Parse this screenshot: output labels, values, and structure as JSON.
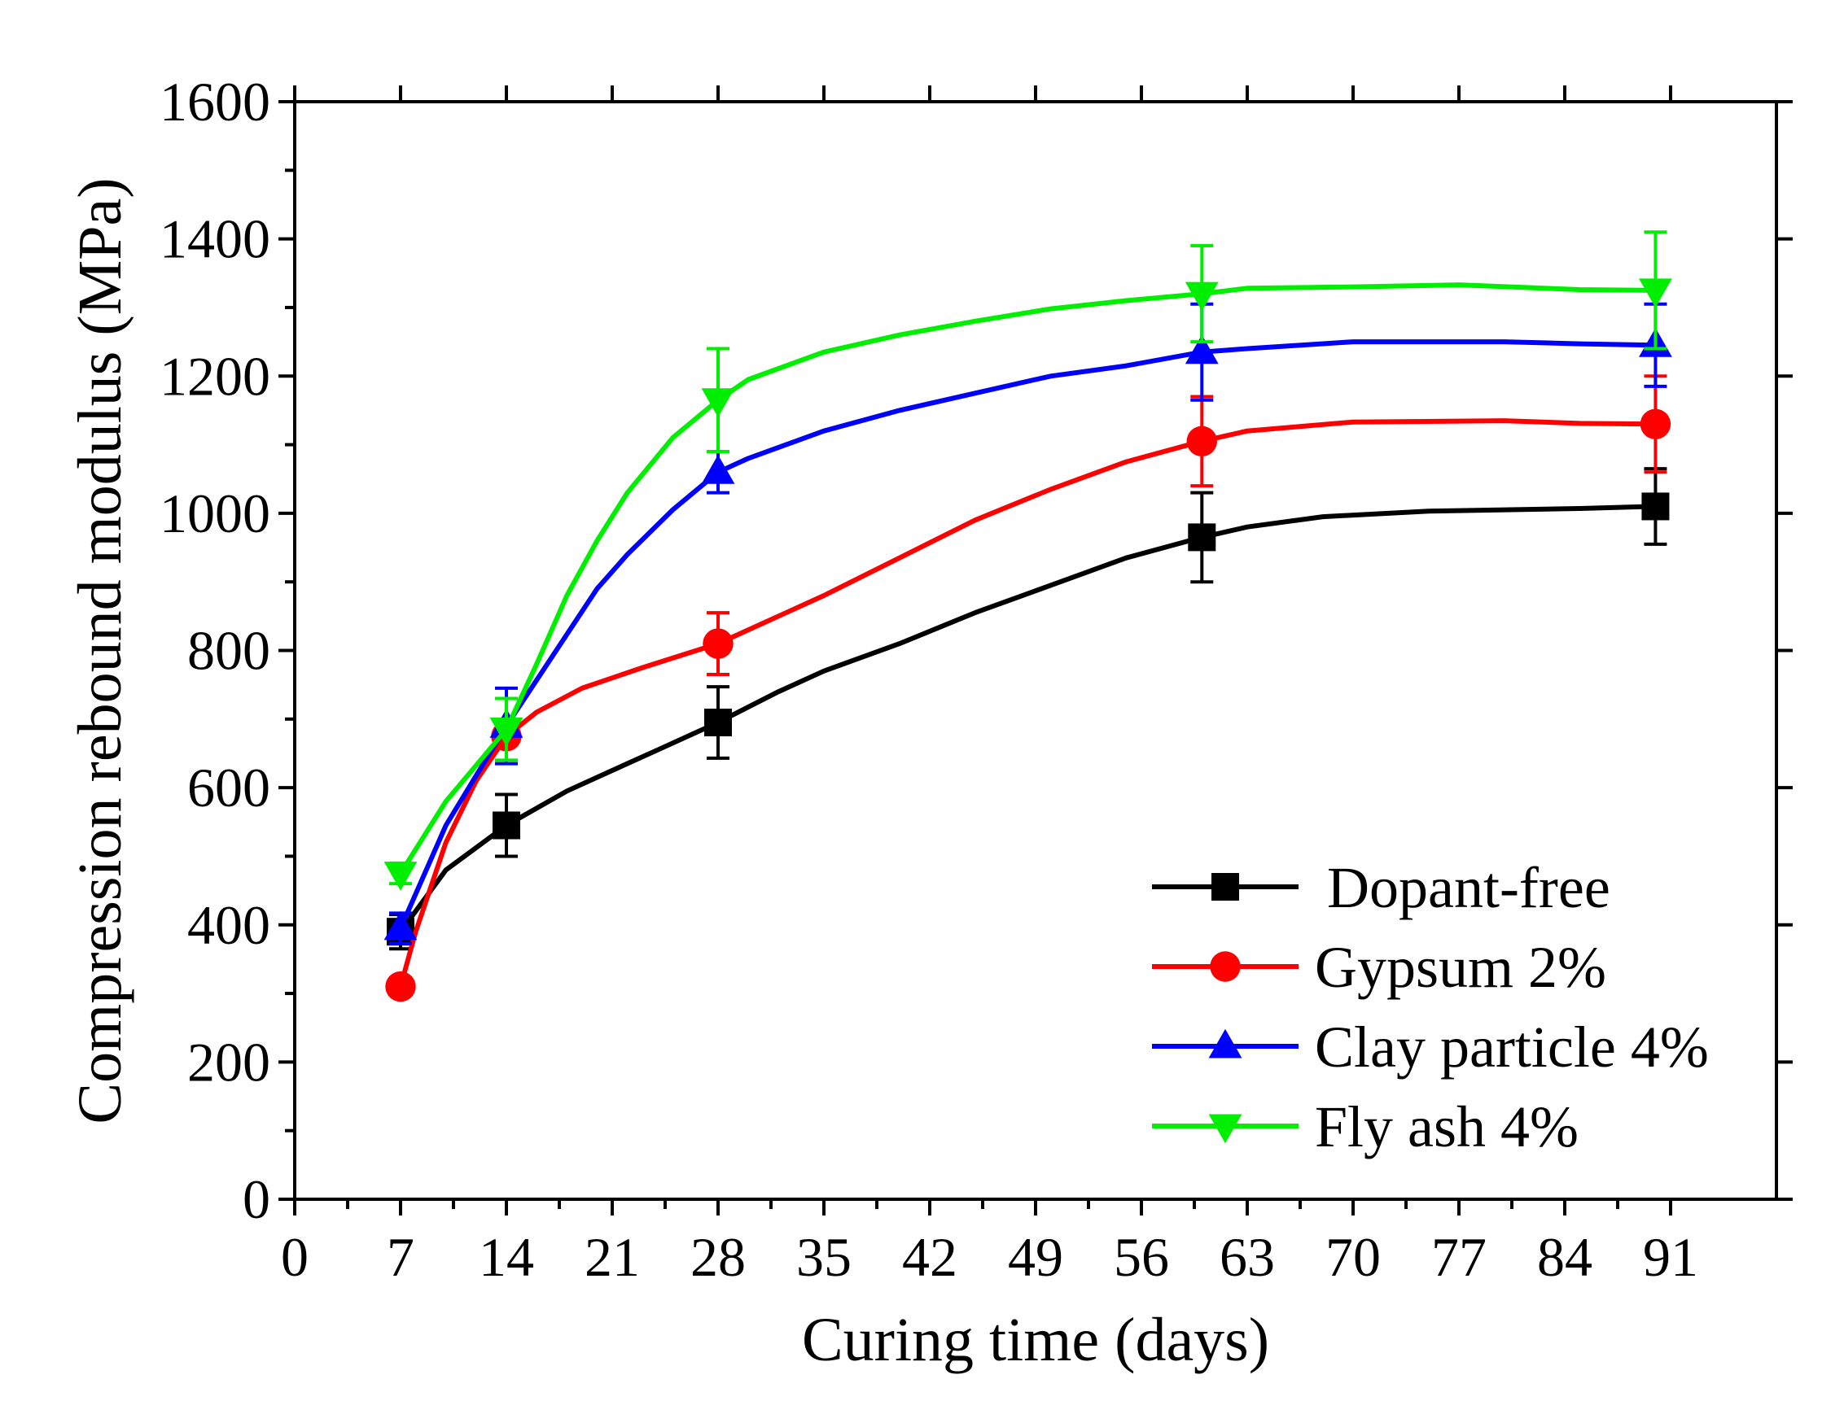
{
  "chart_data": {
    "type": "line",
    "xlabel": "Curing time (days)",
    "ylabel": "Compression rebound modulus (MPa)",
    "xlim": [
      0,
      98
    ],
    "ylim": [
      0,
      1600
    ],
    "xticks": [
      0,
      7,
      14,
      21,
      28,
      35,
      42,
      49,
      56,
      63,
      70,
      77,
      84,
      91
    ],
    "yticks": [
      0,
      200,
      400,
      600,
      800,
      1000,
      1200,
      1400,
      1600
    ],
    "x_tick_labels": [
      "0",
      "7",
      "14",
      "21",
      "28",
      "35",
      "42",
      "49",
      "56",
      "63",
      "70",
      "77",
      "84",
      "91"
    ],
    "y_tick_labels": [
      "0",
      "200",
      "400",
      "600",
      "800",
      "1000",
      "1200",
      "1400",
      "1600"
    ],
    "legend_position": "bottom-right",
    "series": [
      {
        "name": "Dopant-free",
        "color": "#000000",
        "marker": "square",
        "x": [
          7,
          14,
          28,
          60,
          90
        ],
        "values": [
          390,
          545,
          695,
          965,
          1010
        ],
        "error": [
          25,
          45,
          52,
          65,
          55
        ],
        "curve": [
          [
            7,
            390
          ],
          [
            10,
            480
          ],
          [
            14,
            545
          ],
          [
            18,
            595
          ],
          [
            21,
            625
          ],
          [
            24,
            655
          ],
          [
            28,
            695
          ],
          [
            32,
            740
          ],
          [
            35,
            770
          ],
          [
            40,
            810
          ],
          [
            45,
            855
          ],
          [
            50,
            895
          ],
          [
            55,
            935
          ],
          [
            60,
            965
          ],
          [
            63,
            980
          ],
          [
            68,
            995
          ],
          [
            75,
            1003
          ],
          [
            85,
            1007
          ],
          [
            90,
            1010
          ]
        ]
      },
      {
        "name": "Gypsum 2%",
        "color": "#ff0000",
        "marker": "circle",
        "x": [
          7,
          14,
          28,
          60,
          90
        ],
        "values": [
          310,
          675,
          810,
          1105,
          1130
        ],
        "error": [
          0,
          0,
          45,
          65,
          70
        ],
        "curve": [
          [
            7,
            310
          ],
          [
            8,
            390
          ],
          [
            10,
            520
          ],
          [
            12,
            610
          ],
          [
            14,
            675
          ],
          [
            16,
            710
          ],
          [
            19,
            745
          ],
          [
            23,
            775
          ],
          [
            28,
            810
          ],
          [
            32,
            850
          ],
          [
            35,
            880
          ],
          [
            40,
            935
          ],
          [
            45,
            990
          ],
          [
            50,
            1035
          ],
          [
            55,
            1075
          ],
          [
            60,
            1105
          ],
          [
            63,
            1120
          ],
          [
            70,
            1133
          ],
          [
            80,
            1135
          ],
          [
            85,
            1131
          ],
          [
            90,
            1130
          ]
        ]
      },
      {
        "name": "Clay particle 4%",
        "color": "#0000ff",
        "marker": "triangle-up",
        "x": [
          7,
          14,
          28,
          60,
          90
        ],
        "values": [
          395,
          690,
          1060,
          1235,
          1245
        ],
        "error": [
          22,
          55,
          30,
          70,
          60
        ],
        "curve": [
          [
            7,
            395
          ],
          [
            10,
            545
          ],
          [
            14,
            690
          ],
          [
            17,
            790
          ],
          [
            20,
            890
          ],
          [
            22,
            940
          ],
          [
            25,
            1005
          ],
          [
            28,
            1060
          ],
          [
            30,
            1080
          ],
          [
            35,
            1120
          ],
          [
            40,
            1150
          ],
          [
            45,
            1175
          ],
          [
            50,
            1200
          ],
          [
            55,
            1215
          ],
          [
            60,
            1235
          ],
          [
            63,
            1240
          ],
          [
            70,
            1250
          ],
          [
            80,
            1250
          ],
          [
            85,
            1247
          ],
          [
            90,
            1245
          ]
        ]
      },
      {
        "name": "Fly ash 4%",
        "color": "#00ee00",
        "marker": "triangle-down",
        "x": [
          7,
          14,
          28,
          60,
          90
        ],
        "values": [
          475,
          685,
          1165,
          1320,
          1325
        ],
        "error": [
          15,
          45,
          75,
          70,
          85
        ],
        "curve": [
          [
            7,
            475
          ],
          [
            10,
            580
          ],
          [
            14,
            685
          ],
          [
            16,
            780
          ],
          [
            18,
            880
          ],
          [
            20,
            960
          ],
          [
            22,
            1030
          ],
          [
            25,
            1110
          ],
          [
            28,
            1165
          ],
          [
            30,
            1195
          ],
          [
            35,
            1235
          ],
          [
            40,
            1260
          ],
          [
            45,
            1280
          ],
          [
            50,
            1298
          ],
          [
            55,
            1310
          ],
          [
            60,
            1320
          ],
          [
            63,
            1328
          ],
          [
            70,
            1330
          ],
          [
            77,
            1333
          ],
          [
            85,
            1326
          ],
          [
            90,
            1325
          ]
        ]
      }
    ]
  }
}
